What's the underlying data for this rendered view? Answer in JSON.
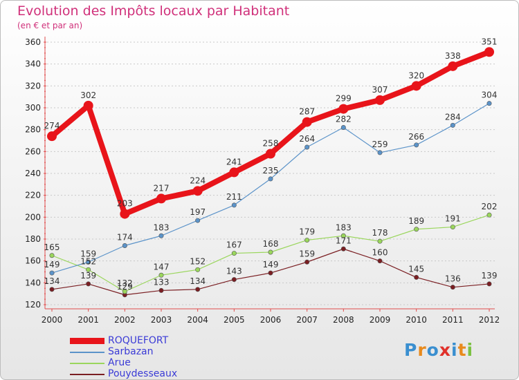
{
  "title": "Evolution des Impôts locaux par Habitant",
  "subtitle": "(en € et par an)",
  "logo": "Proxiti",
  "chart_data": {
    "type": "line",
    "title": "Evolution des Impôts locaux par Habitant",
    "subtitle": "(en € et par an)",
    "xlabel": "",
    "ylabel": "",
    "x": [
      "2000",
      "2001",
      "2002",
      "2003",
      "2004",
      "2005",
      "2006",
      "2007",
      "2008",
      "2009",
      "2010",
      "2011",
      "2012"
    ],
    "ylim": [
      120,
      360
    ],
    "yticks": [
      120,
      140,
      160,
      180,
      200,
      220,
      240,
      260,
      280,
      300,
      320,
      340,
      360
    ],
    "grid": "horizontal dotted",
    "legend": "bottom-left",
    "series": [
      {
        "name": "ROQUEFORT",
        "color": "#e8141a",
        "values": [
          274,
          302,
          203,
          217,
          224,
          241,
          258,
          287,
          299,
          307,
          320,
          338,
          351
        ]
      },
      {
        "name": "Sarbazan",
        "color": "#5b93c9",
        "values": [
          149,
          159,
          174,
          183,
          197,
          211,
          235,
          264,
          282,
          259,
          266,
          284,
          304
        ]
      },
      {
        "name": "Arue",
        "color": "#9ad65c",
        "values": [
          165,
          152,
          132,
          147,
          152,
          167,
          168,
          179,
          183,
          178,
          189,
          191,
          202
        ]
      },
      {
        "name": "Pouydesseaux",
        "color": "#7a1e22",
        "values": [
          134,
          139,
          129,
          133,
          134,
          143,
          149,
          159,
          171,
          160,
          145,
          136,
          139
        ]
      }
    ]
  }
}
